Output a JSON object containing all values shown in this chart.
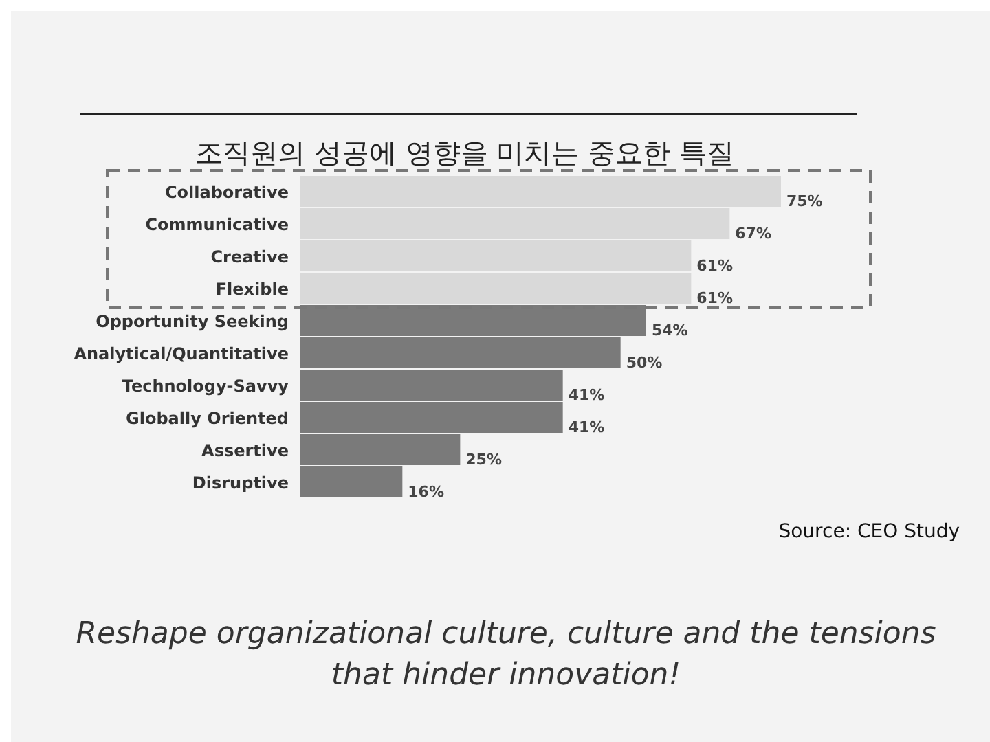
{
  "chart_data": {
    "type": "bar",
    "orientation": "horizontal",
    "title": "조직원의 성공에 영향을 미치는 중요한 특질",
    "categories": [
      "Collaborative",
      "Communicative",
      "Creative",
      "Flexible",
      "Opportunity Seeking",
      "Analytical/Quantitative",
      "Technology-Savvy",
      "Globally Oriented",
      "Assertive",
      "Disruptive"
    ],
    "values": [
      75,
      67,
      61,
      61,
      54,
      50,
      41,
      41,
      25,
      16
    ],
    "colors": [
      "#d9d9d9",
      "#d9d9d9",
      "#d9d9d9",
      "#d9d9d9",
      "#7a7a7a",
      "#7a7a7a",
      "#7a7a7a",
      "#7a7a7a",
      "#7a7a7a",
      "#7a7a7a"
    ],
    "value_labels": [
      "75%",
      "67%",
      "61%",
      "61%",
      "54%",
      "50%",
      "41%",
      "41%",
      "25%",
      "16%"
    ],
    "annotations": [
      "Source: CEO Study",
      "Reshape organizational culture, culture and the tensions that hinder innovation!"
    ]
  }
}
